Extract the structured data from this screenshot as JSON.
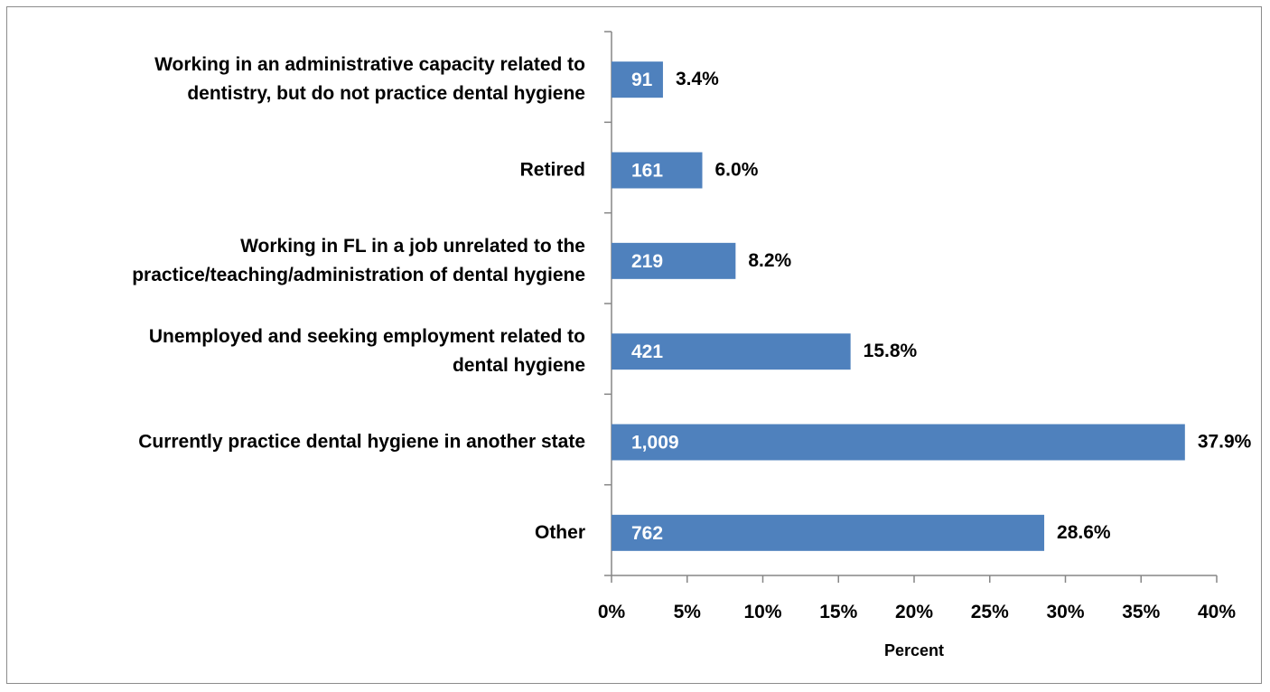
{
  "chart_data": {
    "type": "bar",
    "orientation": "horizontal",
    "categories": [
      [
        "Working in an administrative capacity related to",
        "dentistry, but do not practice dental hygiene"
      ],
      [
        "Retired"
      ],
      [
        "Working in FL in a job unrelated to the",
        "practice/teaching/administration of dental hygiene"
      ],
      [
        "Unemployed and seeking employment related to",
        "dental hygiene"
      ],
      [
        "Currently practice dental hygiene in another state"
      ],
      [
        "Other"
      ]
    ],
    "values": [
      3.4,
      6.0,
      8.2,
      15.8,
      37.9,
      28.6
    ],
    "counts": [
      "91",
      "161",
      "219",
      "421",
      "1,009",
      "762"
    ],
    "percent_labels": [
      "3.4%",
      "6.0%",
      "8.2%",
      "15.8%",
      "37.9%",
      "28.6%"
    ],
    "xlabel": "Percent",
    "xlim": [
      0,
      40
    ],
    "x_ticks": [
      "0%",
      "5%",
      "10%",
      "15%",
      "20%",
      "25%",
      "30%",
      "35%",
      "40%"
    ],
    "bar_color": "#4f81bd",
    "grid": false,
    "legend": "none"
  }
}
